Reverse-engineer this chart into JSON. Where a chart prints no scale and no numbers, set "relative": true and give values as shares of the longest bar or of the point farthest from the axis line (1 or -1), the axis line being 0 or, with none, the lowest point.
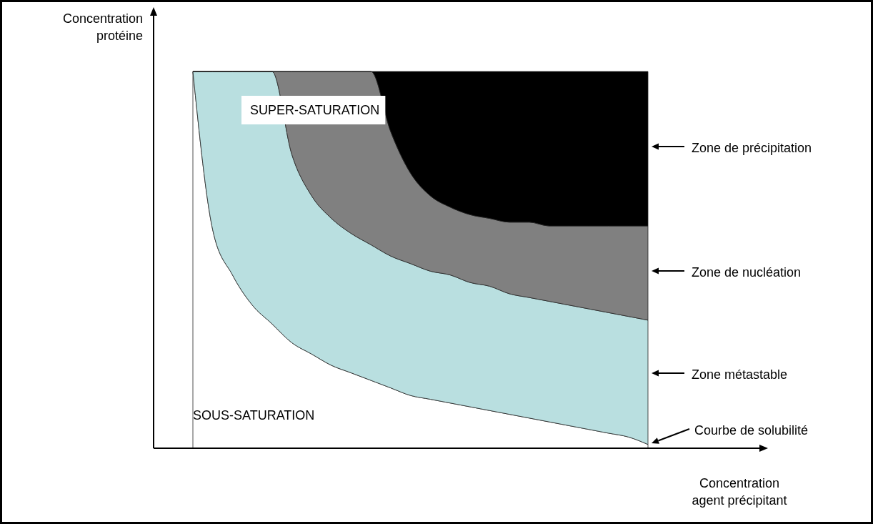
{
  "chart_data": {
    "type": "area",
    "stacked": true,
    "relative": true,
    "xlabel": "Concentration agent précipitant",
    "ylabel": "Concentration protéine",
    "categories": [
      null,
      null,
      null,
      null,
      null,
      null,
      null,
      null,
      null,
      null,
      null,
      null,
      null,
      null,
      null,
      null,
      null,
      null,
      null,
      null,
      null,
      null,
      null,
      null
    ],
    "series": [
      {
        "color": "#ffffff",
        "values": [
          1,
          0.58,
          0.46,
          0.38,
          0.33,
          0.28,
          0.25,
          0.22,
          0.2,
          0.18,
          0.16,
          0.14,
          0.13,
          0.12,
          0.11,
          0.1,
          0.09,
          0.08,
          0.07,
          0.06,
          0.05,
          0.04,
          0.03,
          0.01
        ]
      },
      {
        "color": "#b9dfe0",
        "values": [
          0,
          0.42,
          0.54,
          0.62,
          0.67,
          0.5,
          0.42,
          0.39,
          0.37,
          0.36,
          0.35,
          0.35,
          0.34,
          0.34,
          0.33,
          0.33,
          0.32,
          0.32,
          0.32,
          0.32,
          0.32,
          0.32,
          0.32,
          0.33
        ]
      },
      {
        "color": "#808080",
        "values": [
          0,
          0,
          0,
          0,
          0,
          0.22,
          0.33,
          0.39,
          0.43,
          0.46,
          0.33,
          0.24,
          0.2,
          0.18,
          0.18,
          0.18,
          0.19,
          0.2,
          0.2,
          0.21,
          0.22,
          0.23,
          0.24,
          0.25
        ]
      },
      {
        "color": "#000000",
        "values": [
          0,
          0,
          0,
          0,
          0,
          0,
          0,
          0,
          0,
          0,
          0.16,
          0.27,
          0.33,
          0.36,
          0.38,
          0.39,
          0.4,
          0.4,
          0.41,
          0.41,
          0.41,
          0.41,
          0.41,
          0.41
        ]
      }
    ],
    "annotations": [
      "SUPER-SATURATION",
      "SOUS-SATURATION",
      "Zone de précipitation",
      "Zone de nucléation",
      "Zone métastable",
      "Courbe de solubilité"
    ]
  }
}
